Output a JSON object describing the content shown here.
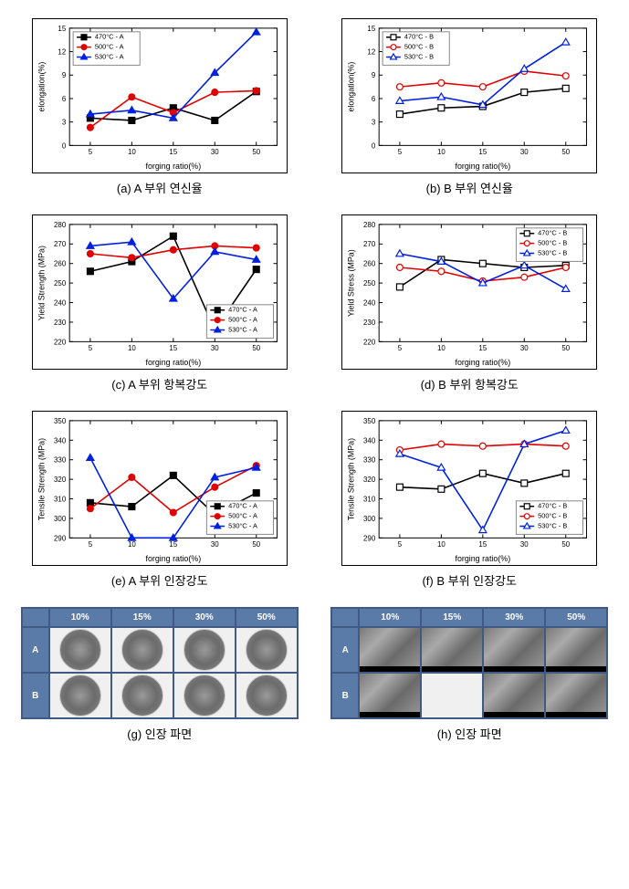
{
  "panels": [
    {
      "id": "a",
      "caption": "(a) A 부위 연신율",
      "ylabel": "elongation(%)",
      "xlabel": "forging ratio(%)",
      "ylim": [
        0,
        15
      ],
      "yticks": [
        0,
        3,
        6,
        9,
        12,
        15
      ],
      "xticks": [
        5,
        10,
        15,
        30,
        50
      ],
      "legend_pos": "tl",
      "series": [
        {
          "label": "470°C - A",
          "color": "#000000",
          "marker": "sq",
          "filled": true,
          "x": [
            5,
            10,
            15,
            30,
            50
          ],
          "y": [
            3.5,
            3.2,
            4.8,
            3.2,
            6.9
          ]
        },
        {
          "label": "500°C - A",
          "color": "#e00000",
          "marker": "ci",
          "filled": true,
          "x": [
            5,
            10,
            15,
            30,
            50
          ],
          "y": [
            2.3,
            6.2,
            4.2,
            6.8,
            7.0
          ]
        },
        {
          "label": "530°C - A",
          "color": "#0020e0",
          "marker": "tr",
          "filled": true,
          "x": [
            5,
            10,
            15,
            30,
            50
          ],
          "y": [
            4.0,
            4.5,
            3.5,
            9.3,
            14.5
          ]
        }
      ]
    },
    {
      "id": "b",
      "caption": "(b) B 부위 연신율",
      "ylabel": "elongation(%)",
      "xlabel": "forging ratio(%)",
      "ylim": [
        0,
        15
      ],
      "yticks": [
        0,
        3,
        6,
        9,
        12,
        15
      ],
      "xticks": [
        5,
        10,
        15,
        30,
        50
      ],
      "legend_pos": "tl",
      "series": [
        {
          "label": "470°C - B",
          "color": "#000000",
          "marker": "sq",
          "filled": false,
          "x": [
            5,
            10,
            15,
            30,
            50
          ],
          "y": [
            4.0,
            4.8,
            5.0,
            6.8,
            7.3
          ]
        },
        {
          "label": "500°C - B",
          "color": "#e00000",
          "marker": "ci",
          "filled": false,
          "x": [
            5,
            10,
            15,
            30,
            50
          ],
          "y": [
            7.5,
            8.0,
            7.5,
            9.5,
            8.9
          ]
        },
        {
          "label": "530°C - B",
          "color": "#0020e0",
          "marker": "tr",
          "filled": false,
          "x": [
            5,
            10,
            15,
            30,
            50
          ],
          "y": [
            5.7,
            6.2,
            5.2,
            9.8,
            13.2
          ]
        }
      ]
    },
    {
      "id": "c",
      "caption": "(c) A 부위 항복강도",
      "ylabel": "Yield Strength (MPa)",
      "xlabel": "forging ratio(%)",
      "ylim": [
        220,
        280
      ],
      "yticks": [
        220,
        230,
        240,
        250,
        260,
        270,
        280
      ],
      "xticks": [
        5,
        10,
        15,
        30,
        50
      ],
      "legend_pos": "br",
      "series": [
        {
          "label": "470°C - A",
          "color": "#000000",
          "marker": "sq",
          "filled": true,
          "x": [
            5,
            10,
            15,
            30,
            50
          ],
          "y": [
            256,
            261,
            274,
            226,
            257
          ]
        },
        {
          "label": "500°C - A",
          "color": "#e00000",
          "marker": "ci",
          "filled": true,
          "x": [
            5,
            10,
            15,
            30,
            50
          ],
          "y": [
            265,
            263,
            267,
            269,
            268
          ]
        },
        {
          "label": "530°C - A",
          "color": "#0020e0",
          "marker": "tr",
          "filled": true,
          "x": [
            5,
            10,
            15,
            30,
            50
          ],
          "y": [
            269,
            271,
            242,
            266,
            262
          ]
        }
      ]
    },
    {
      "id": "d",
      "caption": "(d) B 부위 항복강도",
      "ylabel": "Yield Stress (MPa)",
      "xlabel": "forging ratio(%)",
      "ylim": [
        220,
        280
      ],
      "yticks": [
        220,
        230,
        240,
        250,
        260,
        270,
        280
      ],
      "xticks": [
        5,
        10,
        15,
        30,
        50
      ],
      "legend_pos": "tr",
      "series": [
        {
          "label": "470°C - B",
          "color": "#000000",
          "marker": "sq",
          "filled": false,
          "x": [
            5,
            10,
            15,
            30,
            50
          ],
          "y": [
            248,
            262,
            260,
            258,
            259
          ]
        },
        {
          "label": "500°C - B",
          "color": "#e00000",
          "marker": "ci",
          "filled": false,
          "x": [
            5,
            10,
            15,
            30,
            50
          ],
          "y": [
            258,
            256,
            251,
            253,
            258
          ]
        },
        {
          "label": "530°C - B",
          "color": "#0020e0",
          "marker": "tr",
          "filled": false,
          "x": [
            5,
            10,
            15,
            30,
            50
          ],
          "y": [
            265,
            261,
            250,
            259,
            247
          ]
        }
      ]
    },
    {
      "id": "e",
      "caption": "(e) A 부위 인장강도",
      "ylabel": "Tensile Strength (MPa)",
      "xlabel": "forging ratio(%)",
      "ylim": [
        290,
        350
      ],
      "yticks": [
        290,
        300,
        310,
        320,
        330,
        340,
        350
      ],
      "xticks": [
        5,
        10,
        15,
        30,
        50
      ],
      "legend_pos": "br",
      "series": [
        {
          "label": "470°C - A",
          "color": "#000000",
          "marker": "sq",
          "filled": true,
          "x": [
            5,
            10,
            15,
            30,
            50
          ],
          "y": [
            308,
            306,
            322,
            302,
            313
          ]
        },
        {
          "label": "500°C - A",
          "color": "#e00000",
          "marker": "ci",
          "filled": true,
          "x": [
            5,
            10,
            15,
            30,
            50
          ],
          "y": [
            305,
            321,
            303,
            316,
            327
          ]
        },
        {
          "label": "530°C - A",
          "color": "#0020e0",
          "marker": "tr",
          "filled": true,
          "x": [
            5,
            10,
            15,
            30,
            50
          ],
          "y": [
            331,
            290,
            290,
            321,
            326
          ]
        }
      ]
    },
    {
      "id": "f",
      "caption": "(f) B 부위 인장강도",
      "ylabel": "Tensile Strength (MPa)",
      "xlabel": "forging ratio(%)",
      "ylim": [
        290,
        350
      ],
      "yticks": [
        290,
        300,
        310,
        320,
        330,
        340,
        350
      ],
      "xticks": [
        5,
        10,
        15,
        30,
        50
      ],
      "legend_pos": "br",
      "series": [
        {
          "label": "470°C - B",
          "color": "#000000",
          "marker": "sq",
          "filled": false,
          "x": [
            5,
            10,
            15,
            30,
            50
          ],
          "y": [
            316,
            315,
            323,
            318,
            323
          ]
        },
        {
          "label": "500°C - B",
          "color": "#e00000",
          "marker": "ci",
          "filled": false,
          "x": [
            5,
            10,
            15,
            30,
            50
          ],
          "y": [
            335,
            338,
            337,
            338,
            337
          ]
        },
        {
          "label": "530°C - B",
          "color": "#0020e0",
          "marker": "tr",
          "filled": false,
          "x": [
            5,
            10,
            15,
            30,
            50
          ],
          "y": [
            333,
            326,
            294,
            338,
            345
          ]
        }
      ]
    }
  ],
  "image_panels": [
    {
      "id": "g",
      "caption": "(g) 인장 파면",
      "style": "circle",
      "cols": [
        "10%",
        "15%",
        "30%",
        "50%"
      ],
      "rows": [
        "A",
        "B"
      ],
      "cells": [
        [
          1,
          1,
          1,
          1
        ],
        [
          1,
          1,
          1,
          1
        ]
      ]
    },
    {
      "id": "h",
      "caption": "(h) 인장 파면",
      "style": "rect",
      "cols": [
        "10%",
        "15%",
        "30%",
        "50%"
      ],
      "rows": [
        "A",
        "B"
      ],
      "cells": [
        [
          1,
          1,
          1,
          1
        ],
        [
          1,
          0,
          1,
          1
        ]
      ]
    }
  ],
  "colors": {
    "bg": "#ffffff",
    "axis": "#000000",
    "table_header": "#5a7aa8",
    "table_bg": "#3e5a85"
  },
  "marker_size": 5,
  "line_width": 1.6
}
